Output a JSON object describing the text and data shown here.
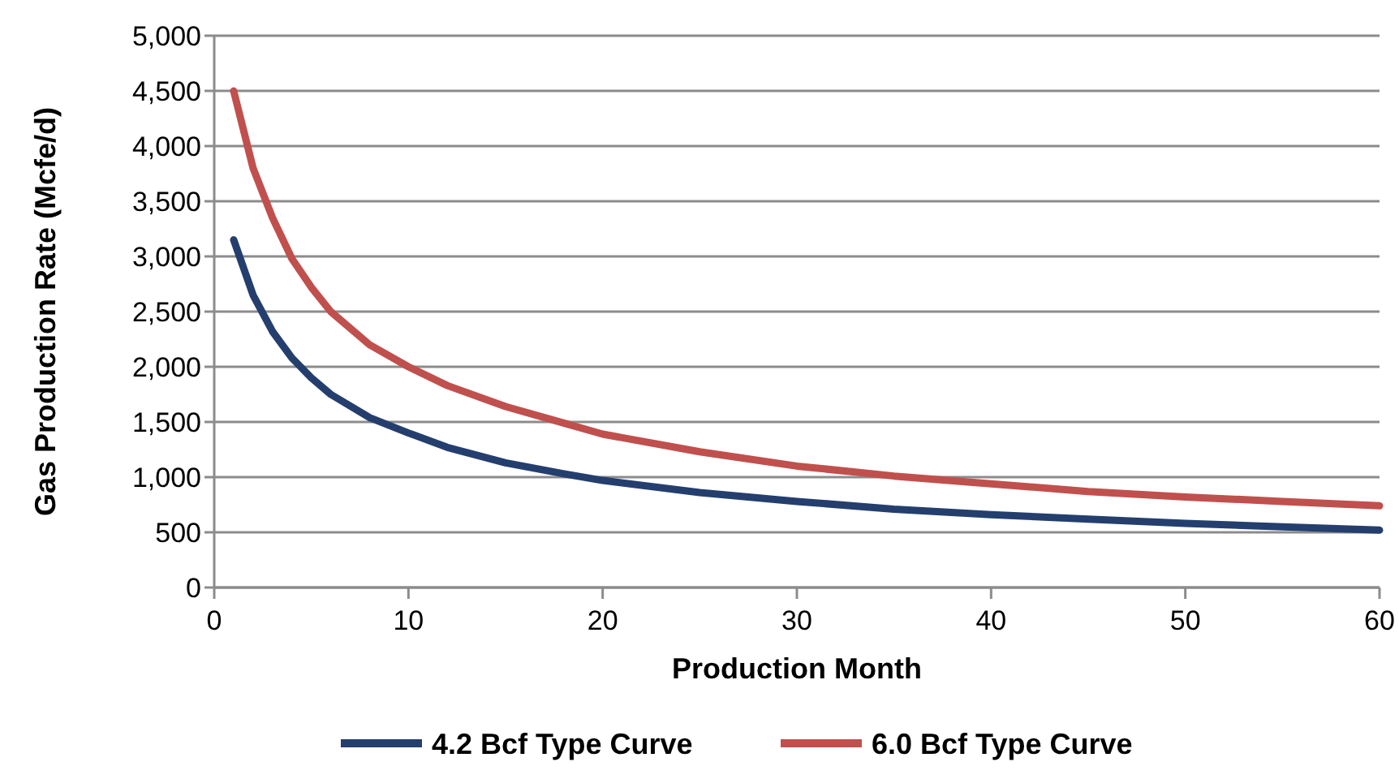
{
  "chart_data": {
    "type": "line",
    "xlabel": "Production Month",
    "ylabel": "Gas Production Rate (Mcfe/d)",
    "x": [
      1,
      2,
      3,
      4,
      5,
      6,
      8,
      10,
      12,
      15,
      18,
      20,
      25,
      30,
      35,
      40,
      45,
      50,
      55,
      60
    ],
    "series": [
      {
        "name": "4.2 Bcf Type Curve",
        "color": "#243f6e",
        "values": [
          3150,
          2650,
          2320,
          2080,
          1900,
          1750,
          1540,
          1400,
          1270,
          1130,
          1030,
          970,
          860,
          780,
          710,
          660,
          620,
          580,
          550,
          520
        ]
      },
      {
        "name": "6.0 Bcf Type Curve",
        "color": "#c0504d",
        "values": [
          4500,
          3800,
          3350,
          2980,
          2720,
          2500,
          2200,
          2000,
          1830,
          1640,
          1490,
          1390,
          1230,
          1100,
          1010,
          940,
          870,
          820,
          780,
          740
        ]
      }
    ],
    "xlim": [
      0,
      60
    ],
    "xticks": [
      0,
      10,
      20,
      30,
      40,
      50,
      60
    ],
    "ylim": [
      0,
      5000
    ],
    "yticks": [
      0,
      500,
      {
        "value": 1000,
        "label": "1,000"
      },
      {
        "value": 1500,
        "label": "1,500"
      },
      {
        "value": 2000,
        "label": "2,000"
      },
      {
        "value": 2500,
        "label": "2,500"
      },
      {
        "value": 3000,
        "label": "3,000"
      },
      {
        "value": 3500,
        "label": "3,500"
      },
      {
        "value": 4000,
        "label": "4,000"
      },
      {
        "value": 4500,
        "label": "4,500"
      },
      {
        "value": 5000,
        "label": "5,000"
      }
    ],
    "grid": "y",
    "legend": "bottom",
    "marker": "none",
    "line_style": "solid"
  }
}
